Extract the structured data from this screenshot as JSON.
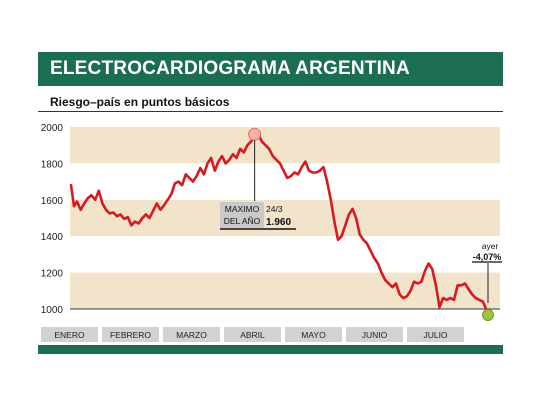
{
  "header": {
    "title": "ELECTROCARDIOGRAMA ARGENTINA",
    "subtitle": "Riesgo–país en puntos básicos"
  },
  "colors": {
    "title_bg": "#1b6e52",
    "band": "#f2e3cb",
    "line": "#d71920",
    "month_box": "#cfd3d6",
    "end_marker": "#9bc53d",
    "peak_marker": "#f3b1ad"
  },
  "annotations": {
    "peak_label_line1": "MAXIMO",
    "peak_label_line2": "DEL AÑO",
    "peak_date": "24/3",
    "peak_value": "1.960",
    "end_label": "ayer",
    "end_change": "-4,07%"
  },
  "chart_data": {
    "type": "line",
    "title": "ELECTROCARDIOGRAMA ARGENTINA",
    "subtitle": "Riesgo–país en puntos básicos",
    "ylim": [
      950,
      2000
    ],
    "yticks": [
      1000,
      1200,
      1400,
      1600,
      1800,
      2000
    ],
    "ytick_labels": [
      "1000",
      "1200",
      "1400",
      "1600",
      "1800",
      "2000"
    ],
    "xlim": [
      0,
      7
    ],
    "categories": [
      "ENERO",
      "FEBRERO",
      "MARZO",
      "ABRIL",
      "MAYO",
      "JUNIO",
      "JULIO"
    ],
    "grid": false,
    "series": [
      {
        "x": [
          0.0,
          0.05,
          0.1,
          0.16,
          0.22,
          0.28,
          0.34,
          0.4,
          0.46,
          0.52,
          0.58,
          0.64,
          0.7,
          0.76,
          0.82,
          0.88,
          0.94,
          1.0,
          1.06,
          1.12,
          1.18,
          1.24,
          1.3,
          1.36,
          1.42,
          1.48,
          1.54,
          1.6,
          1.66,
          1.72,
          1.78,
          1.84,
          1.9,
          1.96,
          2.02,
          2.08,
          2.14,
          2.2,
          2.26,
          2.32,
          2.38,
          2.44,
          2.5,
          2.56,
          2.62,
          2.68,
          2.74,
          2.8,
          2.86,
          2.92,
          2.98,
          3.04,
          3.1,
          3.16,
          3.22,
          3.28,
          3.34,
          3.4,
          3.46,
          3.52,
          3.58,
          3.64,
          3.7,
          3.76,
          3.82,
          3.88,
          3.94,
          4.0,
          4.06,
          4.12,
          4.18,
          4.24,
          4.3,
          4.36,
          4.42,
          4.48,
          4.54,
          4.6,
          4.66,
          4.72,
          4.78,
          4.84,
          4.9,
          4.96,
          5.02,
          5.08,
          5.14,
          5.2,
          5.26,
          5.32,
          5.38,
          5.44,
          5.5,
          5.56,
          5.62,
          5.68,
          5.74,
          5.8,
          5.86,
          5.92,
          5.98,
          6.04,
          6.1,
          6.16,
          6.22,
          6.28,
          6.34,
          6.4,
          6.46,
          6.52,
          6.58,
          6.64,
          6.7,
          6.76,
          6.82,
          6.87
        ],
        "values": [
          1680,
          1565,
          1590,
          1545,
          1580,
          1610,
          1625,
          1600,
          1650,
          1580,
          1545,
          1525,
          1530,
          1510,
          1520,
          1495,
          1505,
          1460,
          1480,
          1470,
          1500,
          1520,
          1500,
          1540,
          1580,
          1545,
          1570,
          1600,
          1630,
          1690,
          1700,
          1680,
          1740,
          1720,
          1700,
          1730,
          1775,
          1740,
          1800,
          1830,
          1760,
          1810,
          1840,
          1800,
          1820,
          1850,
          1830,
          1880,
          1860,
          1900,
          1920,
          1950,
          1960,
          1920,
          1900,
          1880,
          1840,
          1820,
          1800,
          1760,
          1720,
          1730,
          1750,
          1740,
          1780,
          1810,
          1760,
          1750,
          1750,
          1760,
          1780,
          1700,
          1600,
          1480,
          1380,
          1400,
          1460,
          1520,
          1550,
          1500,
          1410,
          1380,
          1360,
          1320,
          1280,
          1250,
          1200,
          1160,
          1140,
          1120,
          1140,
          1080,
          1060,
          1070,
          1100,
          1150,
          1140,
          1150,
          1210,
          1250,
          1220,
          1130,
          1010,
          1060,
          1050,
          1060,
          1050,
          1130,
          1130,
          1140,
          1110,
          1080,
          1060,
          1050,
          1040,
          1000
        ]
      }
    ],
    "annotations": [
      {
        "x": 3.04,
        "y": 1960,
        "label": "MAXIMO DEL AÑO 24/3 1.960"
      },
      {
        "x": 6.87,
        "y": 1000,
        "label": "ayer -4,07%"
      }
    ]
  }
}
